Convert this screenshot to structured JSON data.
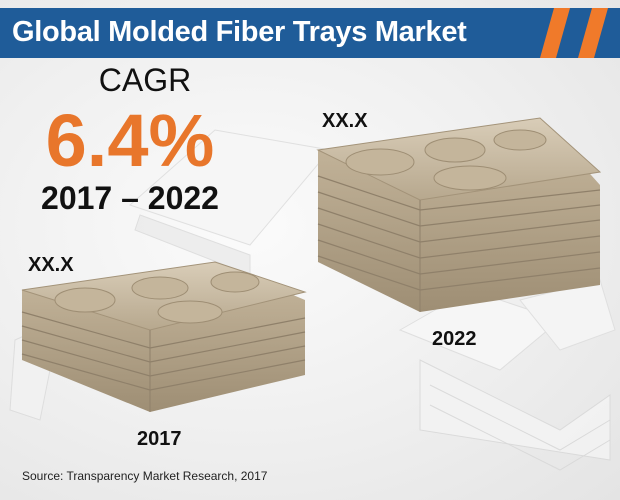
{
  "header": {
    "title": "Global Molded Fiber Trays Market",
    "accent_color": "#f07a2a",
    "bg_color": "#1f5c99"
  },
  "cagr": {
    "label": "CAGR",
    "value": "6.4%",
    "period": "2017 – 2022",
    "value_color": "#e8762b"
  },
  "stacks": [
    {
      "year": "2017",
      "value": "XX.X"
    },
    {
      "year": "2022",
      "value": "XX.X"
    }
  ],
  "source": "Source: Transparency Market Research, 2017",
  "icons": {
    "tray_stack": "molded-fiber-tray-stack-illustration"
  }
}
